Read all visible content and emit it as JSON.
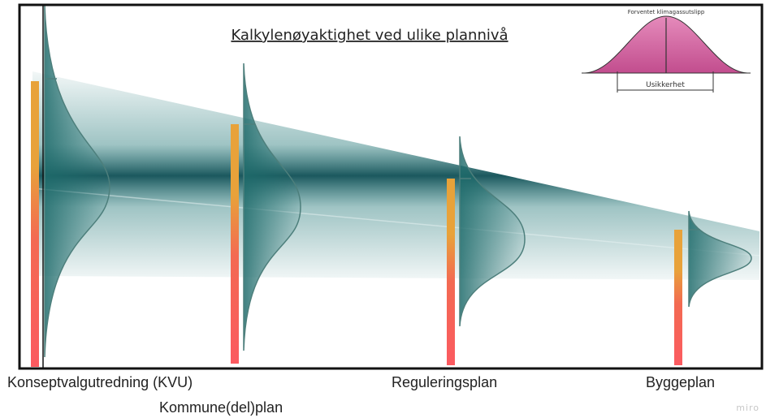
{
  "title": "Kalkylenøyaktighet ved ulike plannivå",
  "legend": {
    "top_label": "Forventet klimagassutslipp",
    "bottom_label": "Usikkerhet"
  },
  "stages": [
    {
      "label": "Konseptvalgutredning (KVU)"
    },
    {
      "label": "Kommune(del)plan"
    },
    {
      "label": "Reguleringsplan"
    },
    {
      "label": "Byggeplan"
    }
  ],
  "watermark": "miro",
  "colors": {
    "frame": "#111111",
    "band": "#2a7c7c",
    "band_dark": "#0f4f55",
    "curve_fill": "#1e6b6b",
    "bar_orange": "#e8a23a",
    "bar_red": "#fb5a60",
    "legend_pink": "#d46aa3"
  }
}
